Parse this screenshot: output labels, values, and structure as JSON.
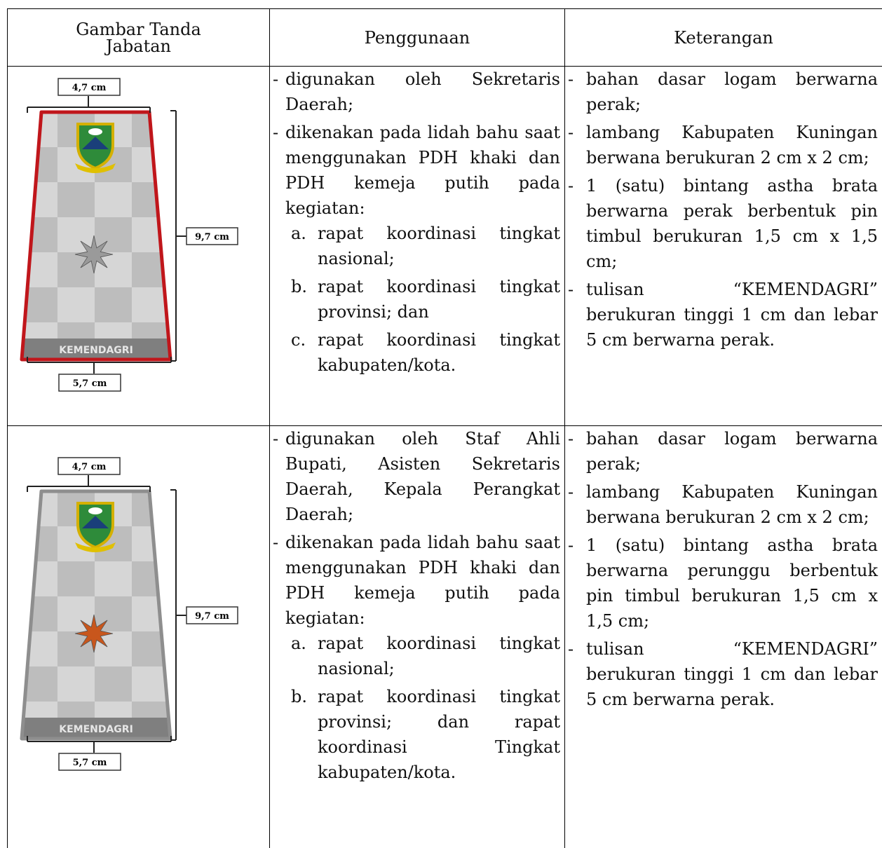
{
  "table": {
    "header": [
      "Gambar Tanda Jabatan",
      "Penggunaan",
      "Keterangan"
    ],
    "rows": [
      {
        "image": {
          "width_top": "4,7 cm",
          "height": "9,7 cm",
          "width_bottom": "5,7 cm",
          "badge_text": "KEMENDAGRI",
          "frame_color": "#c0161b",
          "star_color": "#9a9a9a"
        },
        "penggunaan": [
          {
            "marker": "-",
            "text": "digunakan oleh Sekretaris Daerah;"
          },
          {
            "marker": "-",
            "text": "dikenakan pada lidah bahu saat menggunakan PDH khaki dan PDH kemeja putih pada kegiatan:",
            "sub": [
              {
                "marker": "a.",
                "text": "rapat koordinasi tingkat nasional;"
              },
              {
                "marker": "b.",
                "text": "rapat koordinasi tingkat provinsi; dan"
              },
              {
                "marker": "c.",
                "text": "rapat koordinasi tingkat kabupaten/kota."
              }
            ]
          }
        ],
        "keterangan": [
          {
            "marker": "-",
            "text": "bahan dasar logam berwarna perak;"
          },
          {
            "marker": "-",
            "text": "lambang Kabupaten Kuningan berwana berukuran 2 cm x 2 cm;"
          },
          {
            "marker": "-",
            "text": "1 (satu) bintang astha brata berwarna perak berbentuk pin timbul berukuran 1,5 cm x 1,5 cm;"
          },
          {
            "marker": "-",
            "text": "tulisan “KEMENDAGRI” berukuran tinggi 1 cm dan lebar 5 cm berwarna perak."
          }
        ]
      },
      {
        "image": {
          "width_top": "4,7 cm",
          "height": "9,7 cm",
          "width_bottom": "5,7 cm",
          "badge_text": "KEMENDAGRI",
          "frame_color": "#8e8e8e",
          "star_color": "#c8561c"
        },
        "penggunaan": [
          {
            "marker": "-",
            "text": "digunakan oleh Staf Ahli Bupati, Asisten Sekretaris Daerah, Kepala Perangkat Daerah;"
          },
          {
            "marker": "-",
            "text": "dikenakan pada lidah bahu saat menggunakan PDH khaki dan PDH kemeja putih pada kegiatan:",
            "sub": [
              {
                "marker": "a.",
                "text": "rapat koordinasi tingkat nasional;"
              },
              {
                "marker": "b.",
                "text": "rapat koordinasi tingkat provinsi; dan rapat koordinasi Tingkat kabupaten/kota."
              }
            ]
          }
        ],
        "keterangan": [
          {
            "marker": "-",
            "text": "bahan dasar logam berwarna perak;"
          },
          {
            "marker": "-",
            "text": "lambang Kabupaten Kuningan berwana berukuran 2 cm x 2 cm;"
          },
          {
            "marker": "-",
            "text": "1 (satu) bintang astha brata berwarna perunggu berbentuk pin timbul berukuran 1,5 cm x 1,5 cm;"
          },
          {
            "marker": "-",
            "text": "tulisan “KEMENDAGRI” berukuran tinggi 1 cm dan lebar 5 cm berwarna perak."
          }
        ]
      }
    ]
  }
}
